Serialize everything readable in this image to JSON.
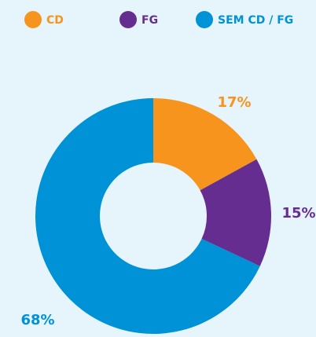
{
  "chart_data": {
    "type": "pie",
    "categories": [
      "CD",
      "FG",
      "SEM CD / FG"
    ],
    "values": [
      17,
      15,
      68
    ],
    "value_labels": [
      "17%",
      "15%",
      "68%"
    ],
    "colors": [
      "#f7941d",
      "#662d91",
      "#0092d6"
    ],
    "legend": "top"
  }
}
